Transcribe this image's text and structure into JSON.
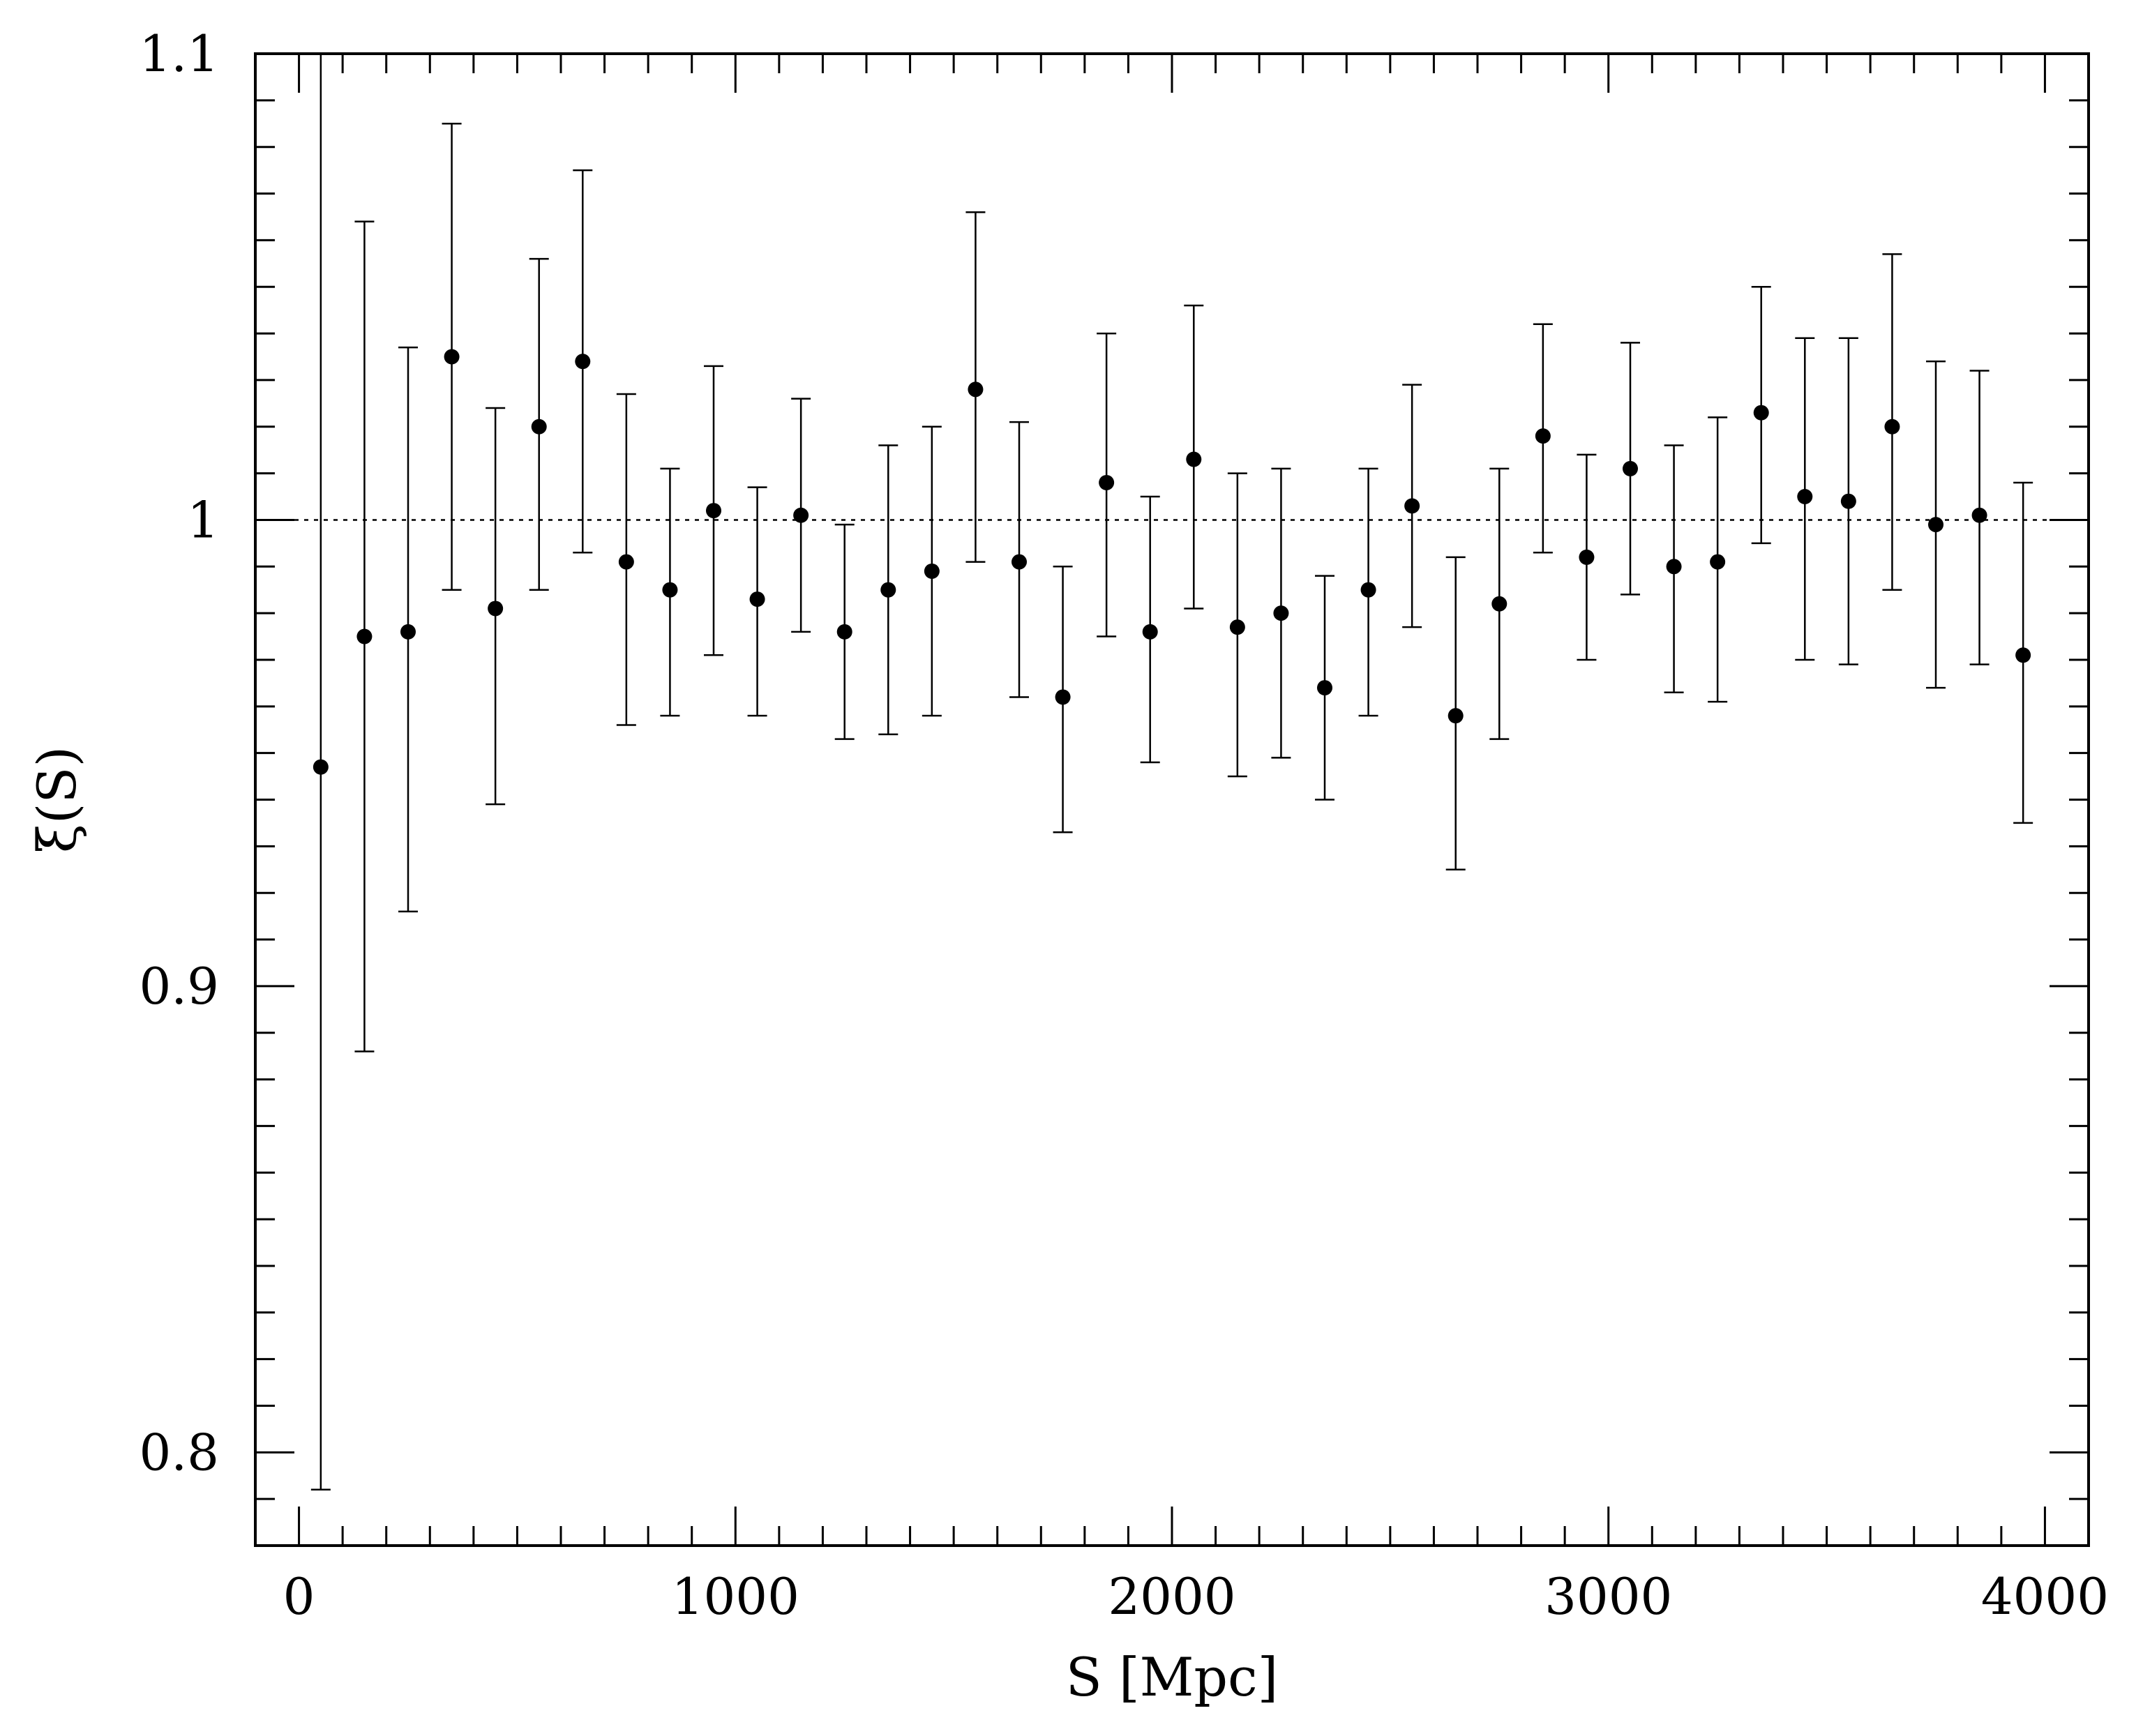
{
  "chart_data": {
    "type": "scatter",
    "title": "",
    "xlabel": "S [Mpc]",
    "ylabel": "ξ(S)",
    "xlim": [
      -100,
      4100
    ],
    "ylim": [
      0.78,
      1.1
    ],
    "xticks": [
      0,
      1000,
      2000,
      3000,
      4000
    ],
    "xtick_labels": [
      "0",
      "1000",
      "2000",
      "3000",
      "4000"
    ],
    "yticks": [
      0.8,
      0.9,
      1.0,
      1.1
    ],
    "ytick_labels": [
      "0.8",
      "0.9",
      "1",
      "1.1"
    ],
    "reference_line": 1.0,
    "grid": false,
    "legend": "none",
    "series": [
      {
        "x": [
          50,
          150,
          250,
          350,
          450,
          550,
          650,
          750,
          850,
          950,
          1050,
          1150,
          1250,
          1350,
          1450,
          1550,
          1650,
          1750,
          1850,
          1950,
          2050,
          2150,
          2250,
          2350,
          2450,
          2550,
          2650,
          2750,
          2850,
          2950,
          3050,
          3150,
          3250,
          3350,
          3450,
          3550,
          3650,
          3750,
          3850,
          3950
        ],
        "y": [
          0.947,
          0.975,
          0.976,
          1.035,
          0.981,
          1.02,
          1.034,
          0.991,
          0.985,
          1.002,
          0.983,
          1.001,
          0.976,
          0.985,
          0.989,
          1.028,
          0.991,
          0.962,
          1.008,
          0.976,
          1.013,
          0.977,
          0.98,
          0.964,
          0.985,
          1.003,
          0.958,
          0.982,
          1.018,
          0.992,
          1.011,
          0.99,
          0.991,
          1.023,
          1.005,
          1.004,
          1.02,
          0.999,
          1.001,
          0.971
        ],
        "y_upper": [
          1.102,
          1.064,
          1.037,
          1.085,
          1.024,
          1.056,
          1.075,
          1.027,
          1.011,
          1.033,
          1.007,
          1.026,
          0.999,
          1.016,
          1.02,
          1.066,
          1.021,
          0.99,
          1.04,
          1.005,
          1.046,
          1.01,
          1.011,
          0.988,
          1.011,
          1.029,
          0.992,
          1.011,
          1.042,
          1.014,
          1.038,
          1.016,
          1.022,
          1.05,
          1.039,
          1.039,
          1.057,
          1.034,
          1.032,
          1.008
        ],
        "y_lower": [
          0.792,
          0.886,
          0.916,
          0.985,
          0.939,
          0.985,
          0.993,
          0.956,
          0.958,
          0.971,
          0.958,
          0.976,
          0.953,
          0.954,
          0.958,
          0.991,
          0.962,
          0.933,
          0.975,
          0.948,
          0.981,
          0.945,
          0.949,
          0.94,
          0.958,
          0.977,
          0.925,
          0.953,
          0.993,
          0.97,
          0.984,
          0.963,
          0.961,
          0.995,
          0.97,
          0.969,
          0.985,
          0.964,
          0.969,
          0.935
        ]
      }
    ]
  }
}
